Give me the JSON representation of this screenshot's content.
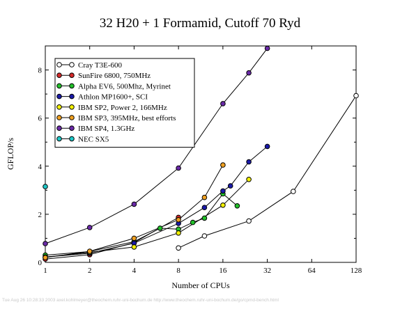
{
  "chart_data": {
    "type": "line",
    "title": "32 H20 + 1 Formamid, Cutoff 70 Ryd",
    "xlabel": "Number of CPUs",
    "ylabel": "GFLOP/s",
    "xscale": "log2",
    "xlim": [
      1,
      128
    ],
    "ylim": [
      0,
      9
    ],
    "xticks": [
      1,
      2,
      4,
      8,
      16,
      32,
      64,
      128
    ],
    "yticks": [
      0,
      2,
      4,
      6,
      8
    ],
    "legend_position": "top-left",
    "grid": false,
    "series": [
      {
        "name": "Cray T3E-600",
        "color": "#ffffff",
        "points": [
          [
            8,
            0.6
          ],
          [
            12,
            1.1
          ],
          [
            24,
            1.72
          ],
          [
            48,
            2.95
          ],
          [
            128,
            6.93
          ]
        ]
      },
      {
        "name": "SunFire 6800, 750MHz",
        "color": "#d42a2a",
        "points": [
          [
            1,
            0.14
          ],
          [
            2,
            0.32
          ],
          [
            4,
            0.82
          ],
          [
            8,
            1.87
          ]
        ]
      },
      {
        "name": "Alpha EV6, 500Mhz, Myrinet",
        "color": "#22c02a",
        "points": [
          [
            1,
            0.3
          ],
          [
            2,
            0.45
          ],
          [
            4,
            0.86
          ],
          [
            6,
            1.42
          ],
          [
            8,
            1.38
          ],
          [
            10,
            1.66
          ],
          [
            12,
            1.84
          ],
          [
            16,
            2.85
          ],
          [
            20,
            2.35
          ]
        ]
      },
      {
        "name": "Athlon MP1600+, SCI",
        "color": "#1a1aa8",
        "points": [
          [
            1,
            0.22
          ],
          [
            2,
            0.38
          ],
          [
            4,
            0.8
          ],
          [
            8,
            1.62
          ],
          [
            12,
            2.28
          ],
          [
            16,
            2.97
          ],
          [
            18,
            3.18
          ],
          [
            24,
            4.18
          ],
          [
            32,
            4.82
          ]
        ]
      },
      {
        "name": "IBM SP2, Power 2, 166MHz",
        "color": "#f2f000",
        "points": [
          [
            1,
            0.22
          ],
          [
            2,
            0.42
          ],
          [
            4,
            0.64
          ],
          [
            8,
            1.22
          ],
          [
            16,
            2.38
          ],
          [
            24,
            3.45
          ]
        ]
      },
      {
        "name": "IBM SP3, 395MHz, best efforts",
        "color": "#f0a020",
        "points": [
          [
            1,
            0.2
          ],
          [
            2,
            0.46
          ],
          [
            4,
            1.0
          ],
          [
            8,
            1.77
          ],
          [
            12,
            2.7
          ],
          [
            16,
            4.05
          ]
        ]
      },
      {
        "name": "IBM SP4, 1.3GHz",
        "color": "#6a2aa8",
        "points": [
          [
            1,
            0.78
          ],
          [
            2,
            1.45
          ],
          [
            4,
            2.42
          ],
          [
            8,
            3.92
          ],
          [
            16,
            6.6
          ],
          [
            24,
            7.88
          ],
          [
            32,
            8.9
          ]
        ]
      },
      {
        "name": "NEC SX5",
        "color": "#1ec8c8",
        "points": [
          [
            1,
            3.15
          ]
        ]
      }
    ]
  },
  "footer": {
    "text": "Tue Aug 26 10:28:33 2003   axel.kohlmeyer@theochem.ruhr-uni-bochum.de   http://www.theochem.ruhr-uni-bochum.de/go/cpmd-bench.html"
  }
}
